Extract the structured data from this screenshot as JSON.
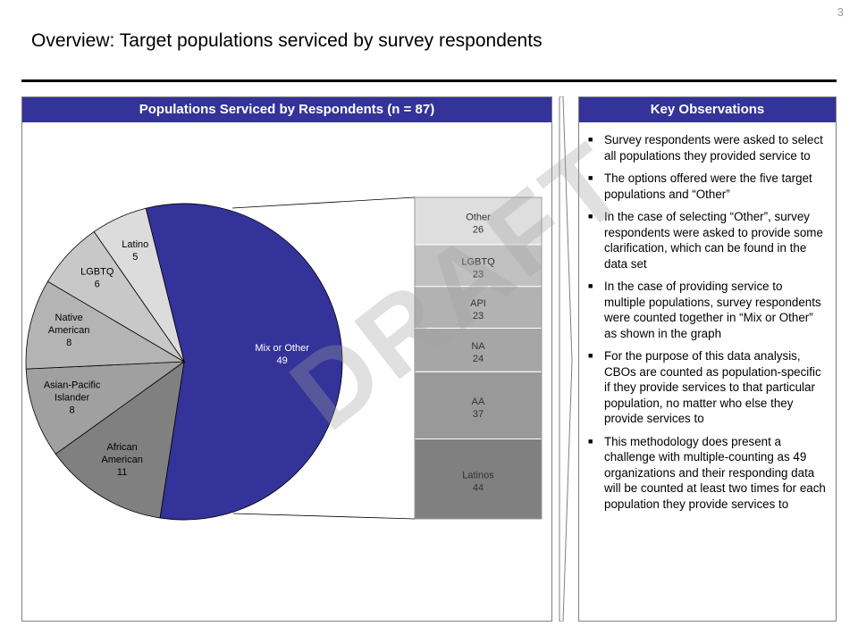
{
  "page_number": "3",
  "title": "Overview: Target populations serviced by survey respondents",
  "left_panel": {
    "header": "Populations Serviced by Respondents (n = 87)"
  },
  "right_panel": {
    "header": "Key Observations",
    "bullets": [
      "Survey respondents were asked to select all populations they provided service to",
      "The options offered were the five target populations and “Other”",
      "In the case of selecting “Other”, survey respondents were asked to provide some clarification, which can be found in the data set",
      "In the case of providing service to multiple populations, survey respondents were counted together in “Mix or Other” as shown in the graph",
      "For the purpose of this data analysis, CBOs are counted as population-specific if they provide services to that particular population, no matter who else they provide services to",
      "This methodology does present a challenge with multiple-counting as 49 organizations and their responding data will be counted at least two times for each population they provide services to"
    ]
  },
  "watermark": "DRAFT",
  "chart_data": [
    {
      "type": "pie",
      "categories": [
        "Mix or Other",
        "African American",
        "Asian-Pacific Islander",
        "Native American",
        "LGBTQ",
        "Latino"
      ],
      "values": [
        49,
        11,
        8,
        8,
        6,
        5
      ],
      "colors": [
        "#333399",
        "#808080",
        "#a0a0a0",
        "#b4b4b4",
        "#c8c8c8",
        "#dcdcdc"
      ]
    },
    {
      "type": "bar",
      "stacked": true,
      "categories": [
        "Latinos",
        "AA",
        "NA",
        "API",
        "LGBTQ",
        "Other"
      ],
      "values": [
        44,
        37,
        24,
        23,
        23,
        26
      ],
      "colors": [
        "#808080",
        "#999999",
        "#a6a6a6",
        "#b2b2b2",
        "#c0c0c0",
        "#dedede"
      ]
    }
  ]
}
